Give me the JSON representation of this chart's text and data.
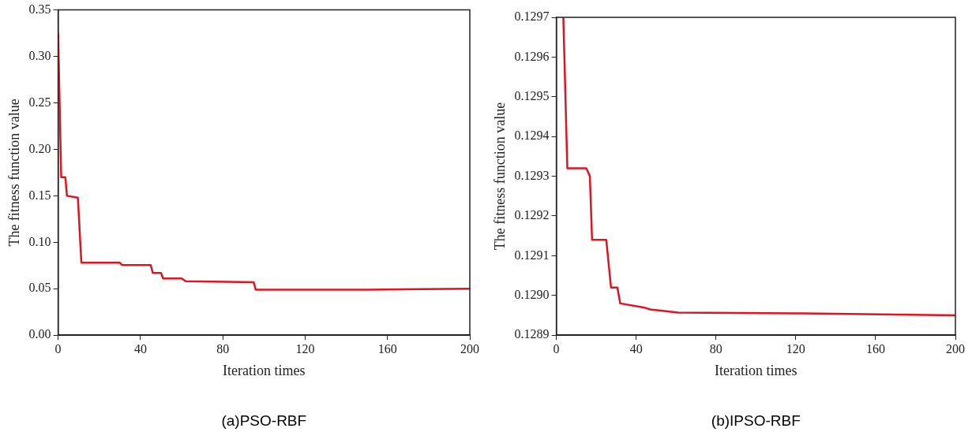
{
  "chart_data": [
    {
      "type": "line",
      "xlabel": "Iteration times",
      "ylabel": "The fitness function value",
      "annotations": [
        "(a)PSO-RBF"
      ],
      "xlim": [
        0,
        200
      ],
      "xticks": [
        0,
        40,
        80,
        120,
        160,
        200
      ],
      "ylim": [
        0,
        0.35
      ],
      "yticks": [
        {
          "value": 0,
          "label": "0.00"
        },
        {
          "value": 0.05,
          "label": "0.05"
        },
        {
          "value": 0.1,
          "label": "0.10"
        },
        {
          "value": 0.15,
          "label": "0.15"
        },
        {
          "value": 0.2,
          "label": "0.20"
        },
        {
          "value": 0.25,
          "label": "0.25"
        },
        {
          "value": 0.3,
          "label": "0.30"
        },
        {
          "value": 0.35,
          "label": "0.35"
        }
      ],
      "marker": "none",
      "series": [
        {
          "color": "#e0141e",
          "x": [
            0,
            1.5,
            3.5,
            4.3,
            9.6,
            11.3,
            30,
            31,
            45,
            46,
            50,
            51,
            60,
            62,
            95,
            96,
            150,
            200
          ],
          "values": [
            0.325,
            0.17,
            0.17,
            0.15,
            0.148,
            0.078,
            0.078,
            0.0755,
            0.0755,
            0.067,
            0.067,
            0.061,
            0.061,
            0.058,
            0.057,
            0.049,
            0.049,
            0.05
          ]
        }
      ]
    },
    {
      "type": "line",
      "xlabel": "Iteration times",
      "ylabel": "The fitness function value",
      "annotations": [
        "(b)IPSO-RBF"
      ],
      "xlim": [
        0,
        200
      ],
      "xticks": [
        0,
        40,
        80,
        120,
        160,
        200
      ],
      "ylim": [
        0.1289,
        0.1297
      ],
      "yticks": [
        {
          "value": 0.1289,
          "label": "0.1289"
        },
        {
          "value": 0.129,
          "label": "0.1290"
        },
        {
          "value": 0.1291,
          "label": "0.1291"
        },
        {
          "value": 0.1292,
          "label": "0.1292"
        },
        {
          "value": 0.1293,
          "label": "0.1293"
        },
        {
          "value": 0.1294,
          "label": "0.1294"
        },
        {
          "value": 0.1295,
          "label": "0.1295"
        },
        {
          "value": 0.1296,
          "label": "0.1296"
        },
        {
          "value": 0.1297,
          "label": "0.1297"
        }
      ],
      "marker": "none",
      "series": [
        {
          "color": "#e0141e",
          "x": [
            3.5,
            5.5,
            15,
            16.8,
            17.9,
            25,
            27.4,
            30.6,
            32,
            43.7,
            47,
            61,
            120,
            200
          ],
          "values": [
            0.1297,
            0.12932,
            0.12932,
            0.1293,
            0.12914,
            0.12914,
            0.12902,
            0.12902,
            0.12898,
            0.12897,
            0.128965,
            0.128957,
            0.128955,
            0.12895
          ]
        }
      ]
    }
  ]
}
